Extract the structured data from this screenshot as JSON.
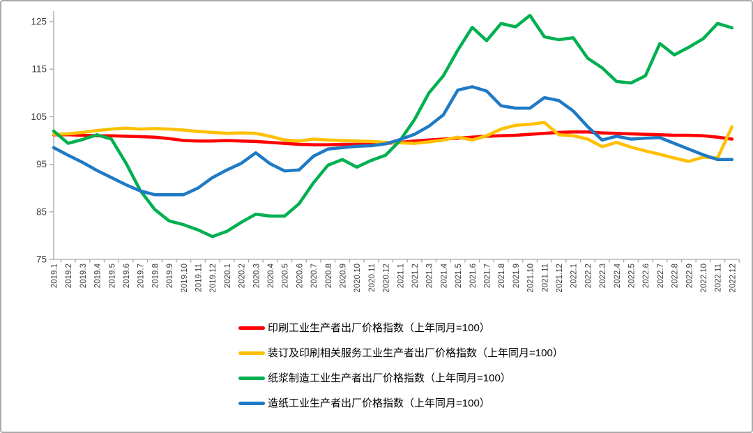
{
  "chart_data": {
    "type": "line",
    "title": "",
    "xlabel": "",
    "ylabel": "",
    "ylim": [
      75,
      125
    ],
    "yticks": [
      75,
      85,
      95,
      105,
      115,
      125
    ],
    "grid": false,
    "legend_position": "bottom-left",
    "axis_color": "#a6a6a6",
    "tick_label_color": "#3f3f3f",
    "x_labels": [
      "2019.1",
      "2019.2",
      "2019.3",
      "2019.4",
      "2019.5",
      "2019.6",
      "2019.7",
      "2019.8",
      "2019.9",
      "2019.10",
      "2019.11",
      "2019.12",
      "2020.1",
      "2020.2",
      "2020.3",
      "2020.4",
      "2020.5",
      "2020.6",
      "2020.7",
      "2020.8",
      "2020.9",
      "2020.10",
      "2020.11",
      "2020.12",
      "2021.1",
      "2021.2",
      "2021.3",
      "2021.4",
      "2021.5",
      "2021.6",
      "2021.7",
      "2021.8",
      "2021.9",
      "2021.10",
      "2021.11",
      "2021.12",
      "2022.1",
      "2022.2",
      "2022.3",
      "2022.4",
      "2022.5",
      "2022.6",
      "2022.7",
      "2022.8",
      "2022.9",
      "2022.10",
      "2022.11",
      "2022.12"
    ],
    "series": [
      {
        "name": "印刷工业生产者出厂价格指数（上年同月=100）",
        "color": "#ff0000",
        "values": [
          101.2,
          101.2,
          101.1,
          101.0,
          101.0,
          100.9,
          100.8,
          100.7,
          100.4,
          100.0,
          99.9,
          99.9,
          100.0,
          99.9,
          99.8,
          99.6,
          99.4,
          99.2,
          99.1,
          99.1,
          99.2,
          99.2,
          99.2,
          99.4,
          99.6,
          99.9,
          100.1,
          100.3,
          100.5,
          100.7,
          100.9,
          101.0,
          101.1,
          101.3,
          101.5,
          101.7,
          101.8,
          101.8,
          101.6,
          101.5,
          101.4,
          101.3,
          101.2,
          101.1,
          101.1,
          101.0,
          100.7,
          100.3
        ]
      },
      {
        "name": "装订及印刷相关服务工业生产者出厂价格指数（上年同月=100）",
        "color": "#ffc000",
        "values": [
          101.3,
          101.4,
          101.7,
          102.1,
          102.4,
          102.6,
          102.4,
          102.5,
          102.4,
          102.2,
          101.9,
          101.7,
          101.5,
          101.6,
          101.5,
          100.9,
          100.1,
          99.9,
          100.3,
          100.1,
          100.0,
          99.9,
          99.8,
          99.6,
          99.5,
          99.4,
          99.7,
          100.1,
          100.7,
          100.1,
          101.0,
          102.4,
          103.2,
          103.4,
          103.8,
          101.2,
          101.0,
          100.3,
          98.7,
          99.6,
          98.6,
          97.8,
          97.1,
          96.3,
          95.6,
          96.5,
          96.3,
          102.9
        ]
      },
      {
        "name": "纸浆制造工业生产者出厂价格指数（上年同月=100）",
        "color": "#00b050",
        "values": [
          102.0,
          99.4,
          100.2,
          101.2,
          100.3,
          95.3,
          89.5,
          85.5,
          83.1,
          82.3,
          81.2,
          79.8,
          80.9,
          82.8,
          84.5,
          84.1,
          84.1,
          86.7,
          91.1,
          94.8,
          96.0,
          94.4,
          95.8,
          96.9,
          100.0,
          104.4,
          110.0,
          113.6,
          119.0,
          123.8,
          121.0,
          124.6,
          123.9,
          126.3,
          121.8,
          121.2,
          121.6,
          117.3,
          115.3,
          112.4,
          112.1,
          113.6,
          120.4,
          118.0,
          119.6,
          121.4,
          124.6,
          123.7
        ]
      },
      {
        "name": "造纸工业生产者出厂价格指数（上年同月=100）",
        "color": "#1f7ac6",
        "values": [
          98.5,
          96.9,
          95.4,
          93.7,
          92.2,
          90.7,
          89.4,
          88.6,
          88.6,
          88.6,
          90.0,
          92.2,
          93.8,
          95.2,
          97.4,
          95.1,
          93.6,
          93.8,
          96.7,
          98.2,
          98.5,
          98.8,
          98.9,
          99.3,
          100.2,
          101.3,
          103.0,
          105.4,
          110.6,
          111.3,
          110.4,
          107.3,
          106.8,
          106.8,
          109.0,
          108.4,
          106.2,
          102.9,
          100.1,
          100.9,
          100.3,
          100.5,
          100.6,
          99.4,
          98.2,
          97.0,
          96.0,
          96.0
        ]
      }
    ]
  },
  "layout_note": ""
}
